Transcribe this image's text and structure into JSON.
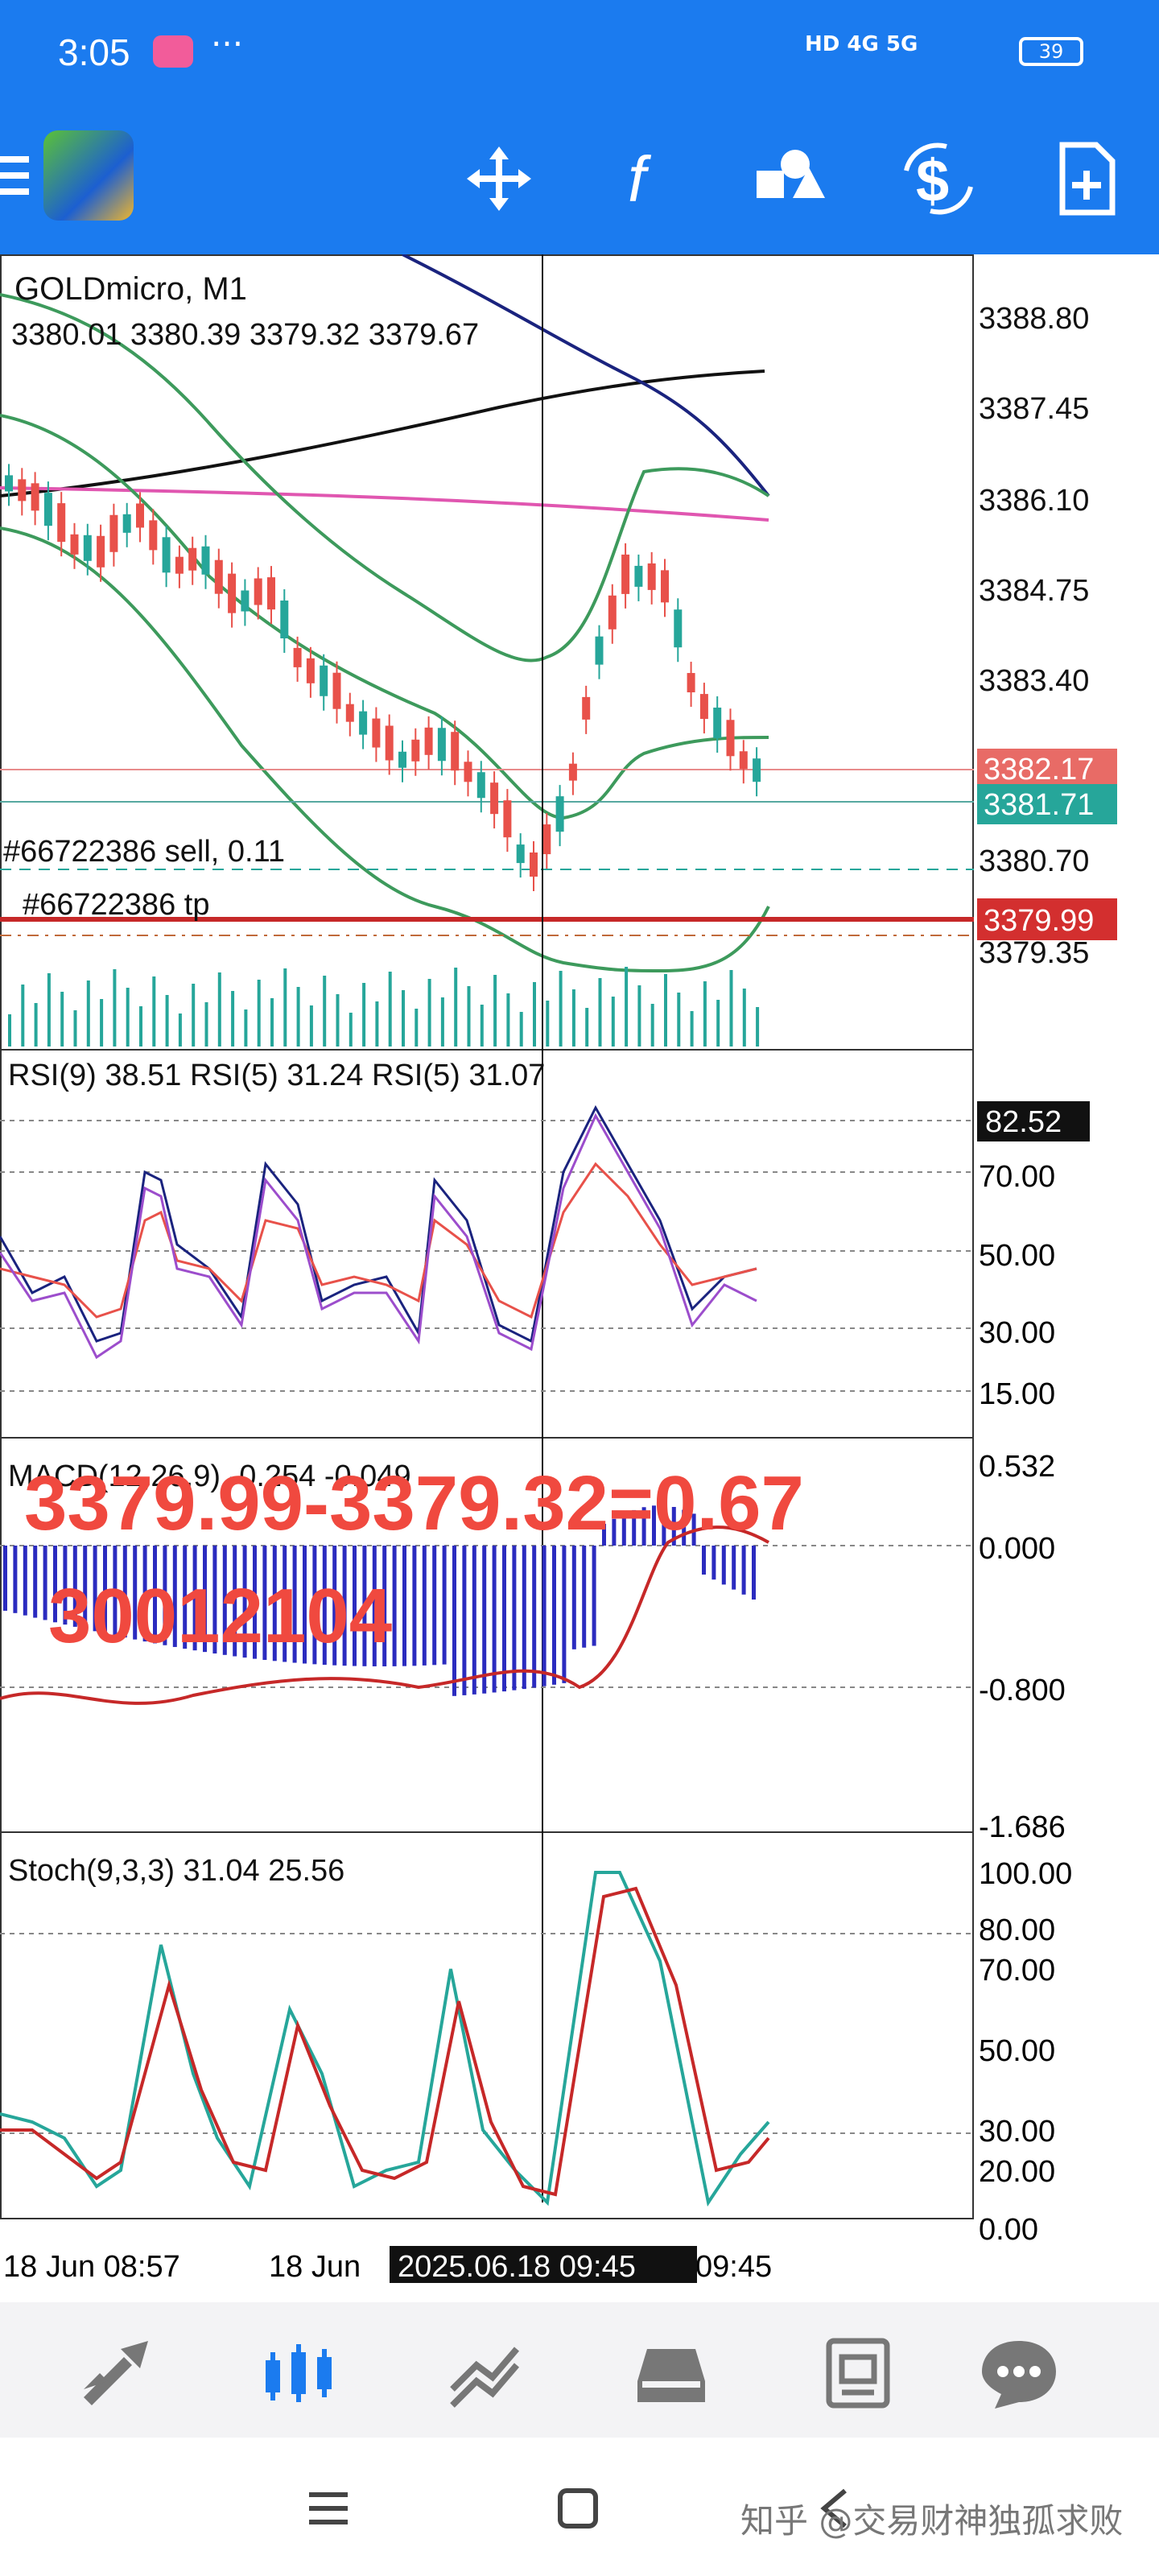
{
  "status_bar": {
    "time": "3:05",
    "battery": "39",
    "network": "HD 4G 5G"
  },
  "toolbar": {
    "icons": [
      "menu-icon",
      "app-logo-icon",
      "crosshair-move-icon",
      "function-icon",
      "objects-icon",
      "trade-icon",
      "new-order-icon"
    ]
  },
  "main_chart": {
    "symbol_label": "GOLDmicro, M1",
    "ohlc": "3380.01 3380.39 3379.32 3379.67",
    "price_ticks": [
      "3388.80",
      "3387.45",
      "3386.10",
      "3384.75",
      "3383.40",
      "3380.70",
      "3379.35"
    ],
    "price_ask": "3382.17",
    "price_bid": "3381.71",
    "price_tp": "3379.99",
    "order_sell_label": "#66722386 sell, 0.11",
    "order_tp_label": "#66722386 tp"
  },
  "rsi_panel": {
    "label": "RSI(9) 38.51 RSI(5) 31.24 RSI(5) 31.07",
    "ticks": [
      "70.00",
      "50.00",
      "30.00",
      "15.00"
    ],
    "cursor_value": "82.52"
  },
  "macd_panel": {
    "label": "MACD(12,26,9) -0.254 -0.049",
    "ticks": [
      "0.532",
      "0.000",
      "-0.800",
      "-1.686"
    ],
    "overlay_diff": "3379.99-3379.32=0.67",
    "overlay_number": "30012104"
  },
  "stoch_panel": {
    "label": "Stoch(9,3,3) 31.04 25.56",
    "ticks": [
      "100.00",
      "80.00",
      "70.00",
      "50.00",
      "30.00",
      "20.00",
      "0.00"
    ]
  },
  "time_axis": {
    "labels": [
      "18 Jun 08:57",
      "18 Jun",
      "09:45"
    ],
    "cursor_time": "2025.06.18 09:45"
  },
  "bottom_nav": {
    "icons": [
      "quotes-icon",
      "chart-icon",
      "trade-icon",
      "history-icon",
      "news-icon",
      "messages-icon"
    ]
  },
  "watermark": "知乎 @交易财神独孤求败",
  "colors": {
    "accent": "#1b7bef",
    "bear": "#e8514a",
    "bull": "#26a69a",
    "tp_red": "#d32f2f"
  }
}
